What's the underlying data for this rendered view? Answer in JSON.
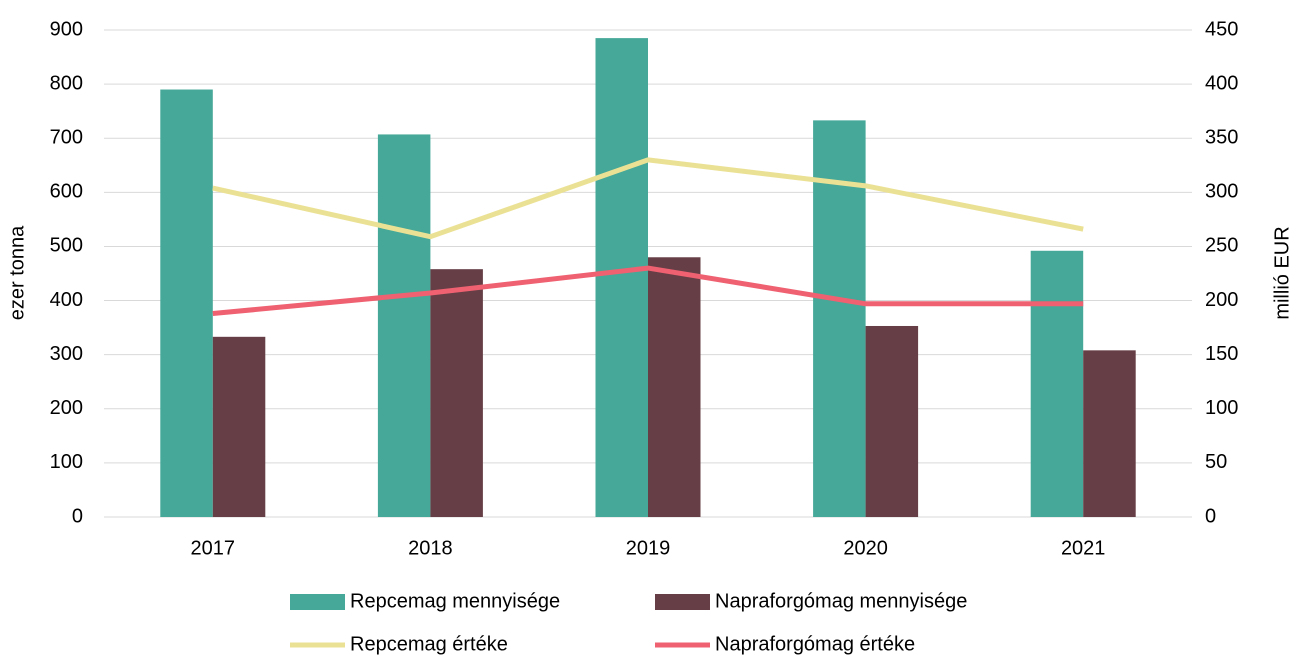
{
  "chart_data": {
    "type": "bar",
    "categories": [
      "2017",
      "2018",
      "2019",
      "2020",
      "2021"
    ],
    "series": [
      {
        "name": "Repcemag mennyisége",
        "type": "bar",
        "color": "#45a898",
        "values": [
          790,
          707,
          885,
          733,
          492
        ]
      },
      {
        "name": "Napraforgómag mennyisége",
        "type": "bar",
        "color": "#663f46",
        "values": [
          333,
          458,
          480,
          353,
          308
        ]
      },
      {
        "name": "Repcemag értéke",
        "type": "line",
        "axis": "y2",
        "color": "#ebe195",
        "values": [
          304,
          259,
          330,
          306,
          266
        ]
      },
      {
        "name": "Napraforgómag értéke",
        "type": "line",
        "axis": "y2",
        "color": "#ef6171",
        "values": [
          188,
          207,
          230,
          197,
          197
        ]
      }
    ],
    "ylabel": "ezer tonna",
    "y2label": "millió EUR",
    "ylim": [
      0,
      900
    ],
    "yticks": [
      0,
      100,
      200,
      300,
      400,
      500,
      600,
      700,
      800,
      900
    ],
    "y2lim": [
      0,
      450
    ],
    "y2ticks": [
      0,
      50,
      100,
      150,
      200,
      250,
      300,
      350,
      400,
      450
    ],
    "grid": true,
    "legend": "bottom"
  }
}
